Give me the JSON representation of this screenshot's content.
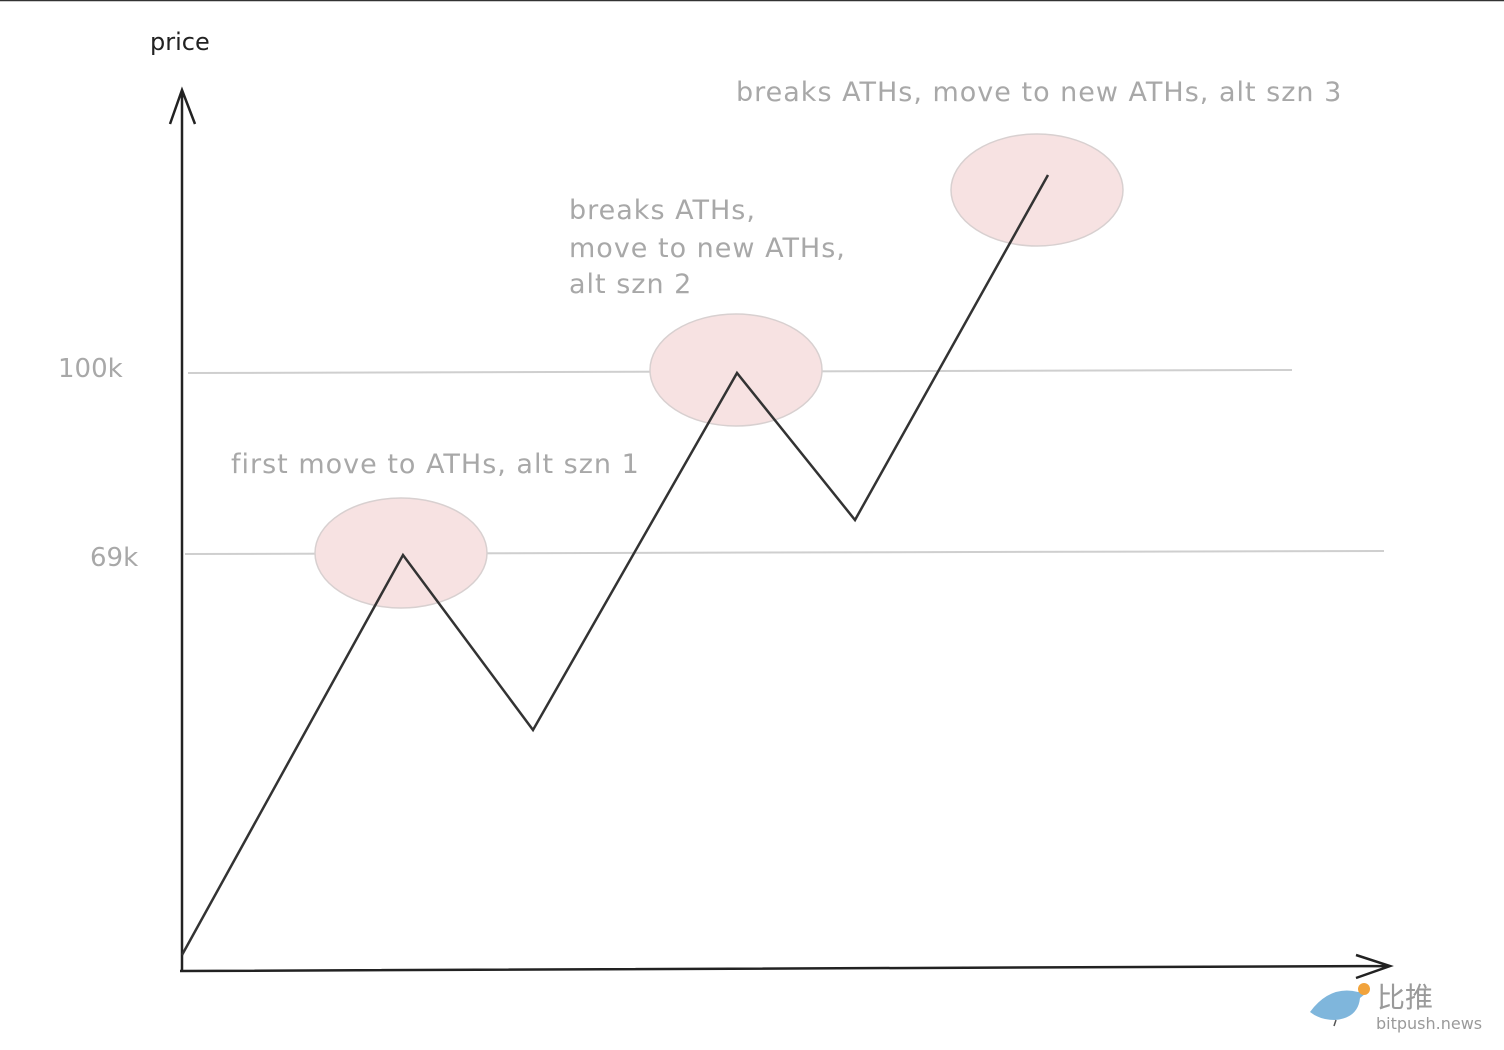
{
  "axis": {
    "y_label": "price"
  },
  "levels": [
    {
      "label": "100k"
    },
    {
      "label": "69k"
    }
  ],
  "annotations": [
    {
      "lines": [
        "first move to ATHs, alt szn 1"
      ]
    },
    {
      "lines": [
        "breaks ATHs,",
        "move to new ATHs,",
        "alt szn 2"
      ]
    },
    {
      "lines": [
        "breaks ATHs, move to new ATHs, alt szn 3"
      ]
    }
  ],
  "watermark": {
    "brand": "比推",
    "site": "bitpush.news"
  }
}
